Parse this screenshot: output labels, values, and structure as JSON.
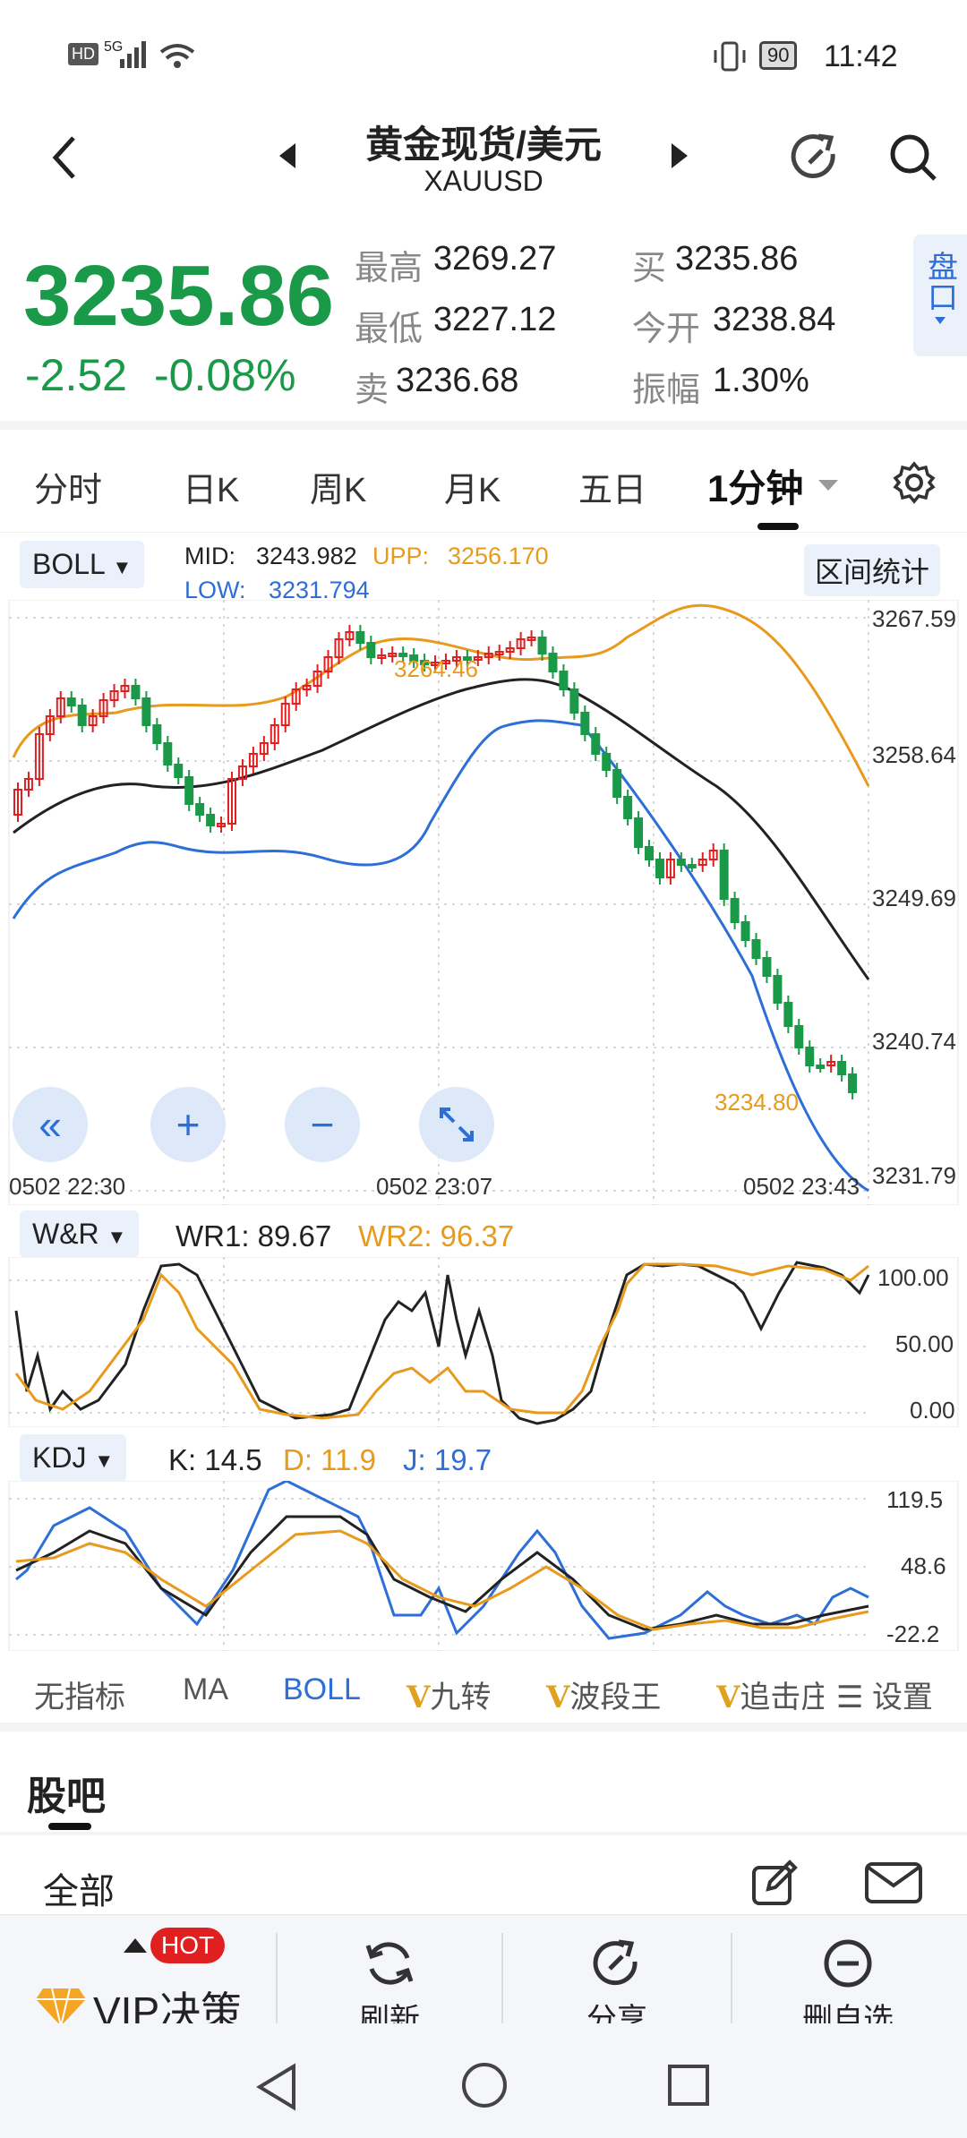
{
  "status": {
    "hd": "HD",
    "signal": "5G",
    "battery": "90",
    "time": "11:42"
  },
  "nav": {
    "title": "黄金现货/美元",
    "subtitle": "XAUUSD"
  },
  "quote": {
    "price": "3235.86",
    "change": "-2.52",
    "change_pct": "-0.08%",
    "high_label": "最高",
    "high": "3269.27",
    "low_label": "最低",
    "low": "3227.12",
    "sell_label": "卖",
    "sell": "3236.68",
    "buy_label": "买",
    "buy": "3235.86",
    "open_label": "今开",
    "open": "3238.84",
    "amp_label": "振幅",
    "amp": "1.30%",
    "panel_btn": "盘口",
    "price_color": "#1a9a49"
  },
  "tabs": [
    "分时",
    "日K",
    "周K",
    "月K",
    "五日",
    "1分钟"
  ],
  "chart": {
    "indicator": "BOLL",
    "mid_label": "MID:",
    "mid": "3243.982",
    "upp_label": "UPP:",
    "upp": "3256.170",
    "low_label": "LOW:",
    "low": "3231.794",
    "range_btn": "区间统计",
    "y_ticks": [
      "3267.59",
      "3258.64",
      "3249.69",
      "3240.74",
      "3231.79"
    ],
    "x_ticks": [
      "0502  22:30",
      "0502  23:07",
      "0502  23:43"
    ],
    "max_marker": "3264.46",
    "min_marker": "3234.80"
  },
  "wr": {
    "name": "W&R",
    "wr1": "WR1: 89.67",
    "wr2": "WR2: 96.37",
    "ticks": [
      "100.00",
      "50.00",
      "0.00"
    ]
  },
  "kdj": {
    "name": "KDJ",
    "k": "K: 14.5",
    "d": "D: 11.9",
    "j": "J: 19.7",
    "ticks": [
      "119.5",
      "48.6",
      "-22.2"
    ]
  },
  "indicator_tabs": [
    "无指标",
    "MA",
    "BOLL",
    "九转",
    "波段王",
    "追击庄"
  ],
  "settings_label": "设置",
  "forum": {
    "title": "股吧",
    "filter": "全部"
  },
  "bottom": {
    "vip": "VIP决策",
    "hot": "HOT",
    "refresh": "刷新",
    "share": "分享",
    "remove": "删自选"
  }
}
